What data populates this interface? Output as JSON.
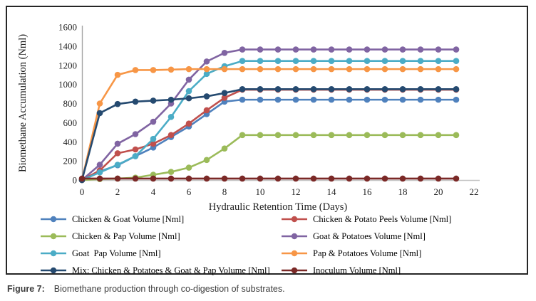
{
  "figure": {
    "caption_label": "Figure 7:",
    "caption_text": "Biomethane production through co-digestion of substrates."
  },
  "chart_data": {
    "type": "line",
    "title": "",
    "xlabel": "Hydraulic Retention Time (Days)",
    "ylabel": "Biomethane Accumulation (Nml)",
    "xlim": [
      0,
      22
    ],
    "ylim": [
      0,
      1600
    ],
    "x_ticks": [
      0,
      2,
      4,
      6,
      8,
      10,
      12,
      14,
      16,
      18,
      20,
      22
    ],
    "y_ticks": [
      0,
      200,
      400,
      600,
      800,
      1000,
      1200,
      1400,
      1600
    ],
    "grid": false,
    "legend_position": "bottom-two-columns",
    "marker": "circle",
    "x": [
      0,
      1,
      2,
      3,
      4,
      5,
      6,
      7,
      8,
      9,
      10,
      11,
      12,
      13,
      14,
      15,
      16,
      17,
      18,
      19,
      20,
      21
    ],
    "series": [
      {
        "name": "Chicken & Goat Volume [Nml]",
        "color": "#4F81BD",
        "values": [
          0,
          90,
          155,
          250,
          340,
          450,
          560,
          690,
          820,
          840,
          840,
          840,
          840,
          840,
          840,
          840,
          840,
          840,
          840,
          840,
          840,
          840
        ]
      },
      {
        "name": "Chicken & Potato Peels Volume [Nml]",
        "color": "#C0504D",
        "values": [
          0,
          100,
          280,
          320,
          380,
          470,
          590,
          730,
          860,
          945,
          945,
          945,
          945,
          945,
          945,
          945,
          945,
          945,
          945,
          945,
          945,
          945
        ]
      },
      {
        "name": "Chicken & Pap Volume [Nml]",
        "color": "#9BBB59",
        "values": [
          0,
          10,
          15,
          25,
          55,
          85,
          130,
          210,
          330,
          470,
          470,
          470,
          470,
          470,
          470,
          470,
          470,
          470,
          470,
          470,
          470,
          470
        ]
      },
      {
        "name": "Goat & Potatoes Volume [Nml]",
        "color": "#8064A2",
        "values": [
          0,
          160,
          380,
          480,
          610,
          800,
          1050,
          1240,
          1330,
          1365,
          1365,
          1365,
          1365,
          1365,
          1365,
          1365,
          1365,
          1365,
          1365,
          1365,
          1365,
          1365
        ]
      },
      {
        "name": "Goat  Pap Volume [Nml]",
        "color": "#4BACC6",
        "values": [
          0,
          80,
          160,
          250,
          430,
          660,
          930,
          1110,
          1190,
          1245,
          1245,
          1245,
          1245,
          1245,
          1245,
          1245,
          1245,
          1245,
          1245,
          1245,
          1245,
          1245
        ]
      },
      {
        "name": "Pap & Potatoes Volume [Nml]",
        "color": "#F79646",
        "values": [
          0,
          800,
          1100,
          1150,
          1150,
          1155,
          1160,
          1160,
          1160,
          1160,
          1160,
          1160,
          1160,
          1160,
          1160,
          1160,
          1160,
          1160,
          1160,
          1160,
          1160,
          1160
        ]
      },
      {
        "name": "Mix: Chicken & Potatoes & Goat & Pap Volume [Nml]",
        "color": "#254A70",
        "values": [
          0,
          700,
          795,
          820,
          830,
          840,
          855,
          875,
          910,
          950,
          950,
          950,
          950,
          950,
          950,
          950,
          950,
          950,
          950,
          950,
          950,
          950
        ]
      },
      {
        "name": "Inoculum Volume [Nml]",
        "color": "#7B2927",
        "values": [
          15,
          15,
          15,
          15,
          15,
          15,
          15,
          15,
          15,
          15,
          15,
          15,
          15,
          15,
          15,
          15,
          15,
          15,
          15,
          15,
          15,
          15
        ]
      }
    ],
    "axis_color": "#a6a6a6",
    "baseline_color": "#c3c3c3"
  }
}
